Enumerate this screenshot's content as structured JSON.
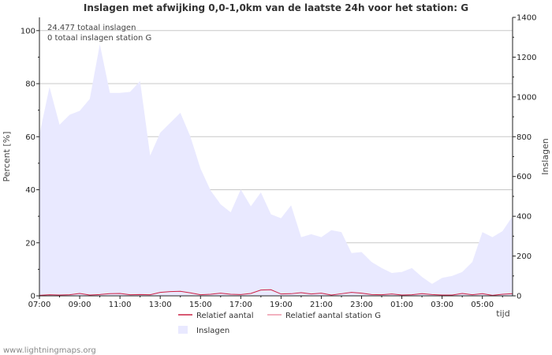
{
  "footer": "www.lightningmaps.org",
  "chart_data": {
    "type": "area",
    "title": "Inslagen met afwijking 0,0-1,0km van de laatste 24h voor het station: G",
    "xlabel": "tijd",
    "ylabel_left": "Percent   [%]",
    "ylabel_right": "Inslagen",
    "ylim_left": [
      0,
      105
    ],
    "ylim_right": [
      0,
      1400
    ],
    "yticks_left": [
      "0",
      "20",
      "40",
      "60",
      "80",
      "100"
    ],
    "yticks_right": [
      "0",
      "200",
      "400",
      "600",
      "800",
      "1000",
      "1200",
      "1400"
    ],
    "x_tick_labels": [
      "07:00",
      "09:00",
      "11:00",
      "13:00",
      "15:00",
      "17:00",
      "19:00",
      "21:00",
      "23:00",
      "01:00",
      "03:00",
      "05:00"
    ],
    "info_lines": [
      "24.477 totaal inslagen",
      "0 totaal inslagen station G"
    ],
    "legend": [
      "Relatief aantal",
      "Relatief aantal station G",
      "Inslagen"
    ],
    "colors": {
      "inslagen_fill": "#e9e9ff",
      "relatief": "#cc2244",
      "relatief_station": "#ee99aa",
      "grid": "#c8c8c8",
      "axis": "#222222"
    },
    "series": [
      {
        "name": "Inslagen",
        "axis": "right",
        "values": [
          810,
          1050,
          860,
          910,
          930,
          990,
          1265,
          1020,
          1020,
          1025,
          1080,
          705,
          820,
          870,
          920,
          800,
          640,
          530,
          460,
          420,
          535,
          450,
          520,
          410,
          390,
          455,
          295,
          310,
          295,
          330,
          320,
          215,
          220,
          170,
          140,
          115,
          120,
          140,
          95,
          60,
          90,
          100,
          120,
          170,
          320,
          295,
          325,
          400
        ]
      },
      {
        "name": "Relatief aantal",
        "axis": "left",
        "values": [
          0.2,
          0.4,
          0.3,
          0.4,
          0.9,
          0.3,
          0.5,
          0.8,
          0.9,
          0.4,
          0.5,
          0.4,
          1.3,
          1.6,
          1.7,
          1.1,
          0.4,
          0.6,
          1.0,
          0.6,
          0.5,
          0.9,
          2.2,
          2.3,
          0.7,
          0.8,
          1.2,
          0.7,
          1.0,
          0.3,
          0.8,
          1.3,
          1.0,
          0.5,
          0.4,
          0.7,
          0.3,
          0.4,
          0.8,
          0.5,
          0.3,
          0.3,
          0.9,
          0.4,
          0.8,
          0.2,
          0.6,
          0.8
        ]
      },
      {
        "name": "Relatief aantal station G",
        "axis": "left",
        "values": [
          0,
          0,
          0,
          0,
          0,
          0,
          0,
          0,
          0,
          0,
          0,
          0,
          0,
          0,
          0,
          0,
          0,
          0,
          0,
          0,
          0,
          0,
          0,
          0,
          0,
          0,
          0,
          0,
          0,
          0,
          0,
          0,
          0,
          0,
          0,
          0,
          0,
          0,
          0,
          0,
          0,
          0,
          0,
          0,
          0,
          0,
          0,
          0
        ]
      }
    ]
  }
}
